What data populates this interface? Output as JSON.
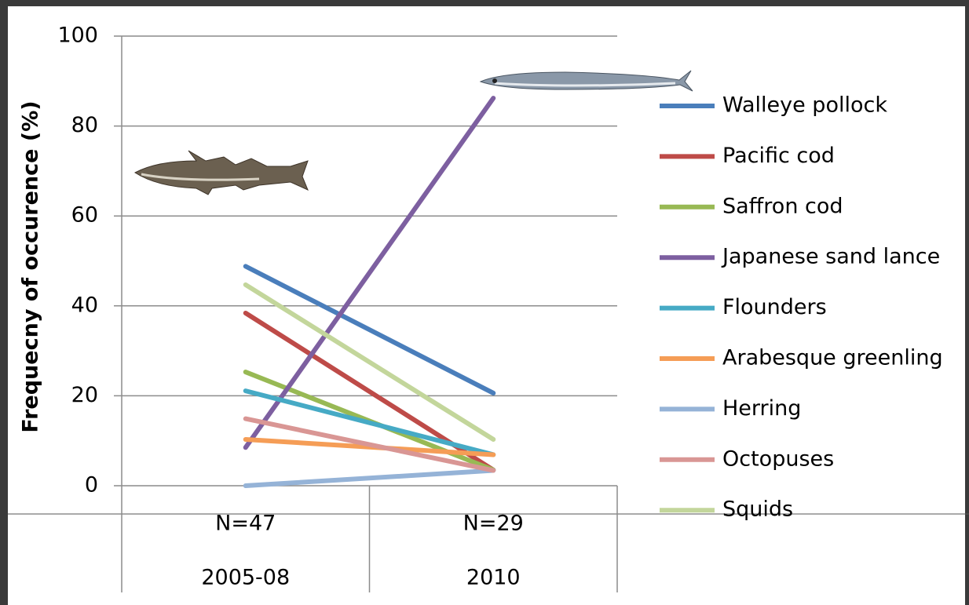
{
  "chart_data": {
    "type": "line",
    "y_label": "Frequecny of occurence (%)",
    "categories": [
      "N=47",
      "N=29"
    ],
    "category_groups": [
      "2005-08",
      "2010"
    ],
    "ylim": [
      0,
      100
    ],
    "yticks": [
      0,
      20,
      40,
      60,
      80,
      100
    ],
    "grid": true,
    "legend": "right",
    "series": [
      {
        "name": "Walleye pollock",
        "color": "#4a7ebb",
        "values": [
          48.8,
          20.6
        ]
      },
      {
        "name": "Pacific cod",
        "color": "#be4b48",
        "values": [
          38.4,
          3.5
        ]
      },
      {
        "name": "Saffron cod",
        "color": "#98b954",
        "values": [
          25.3,
          3.5
        ]
      },
      {
        "name": "Japanese sand lance",
        "color": "#7d5fa0",
        "values": [
          8.5,
          86.2
        ]
      },
      {
        "name": "Flounders",
        "color": "#46aac5",
        "values": [
          21.1,
          6.9
        ]
      },
      {
        "name": "Arabesque greenling",
        "color": "#f59d56",
        "values": [
          10.3,
          6.9
        ]
      },
      {
        "name": "Herring",
        "color": "#95b3d7",
        "values": [
          0,
          3.4
        ]
      },
      {
        "name": "Octopuses",
        "color": "#d99694",
        "values": [
          14.9,
          3.4
        ]
      },
      {
        "name": "Squids",
        "color": "#c3d69b",
        "values": [
          44.7,
          10.3
        ]
      }
    ]
  }
}
